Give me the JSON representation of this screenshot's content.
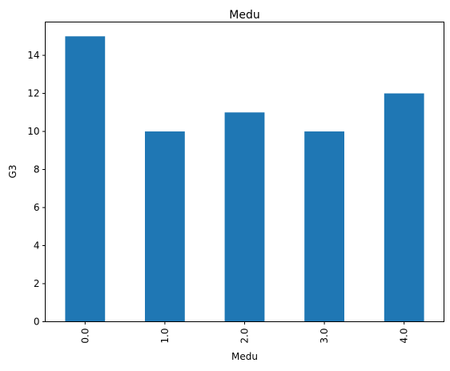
{
  "chart_data": {
    "type": "bar",
    "title": "Medu",
    "xlabel": "Medu",
    "ylabel": "G3",
    "categories": [
      "0.0",
      "1.0",
      "2.0",
      "3.0",
      "4.0"
    ],
    "values": [
      15,
      10,
      11,
      10,
      12
    ],
    "ylim": [
      0,
      15.75
    ],
    "yticks": [
      0,
      2,
      4,
      6,
      8,
      10,
      12,
      14
    ],
    "bar_color": "#1f77b4",
    "grid": false,
    "legend": "none"
  }
}
